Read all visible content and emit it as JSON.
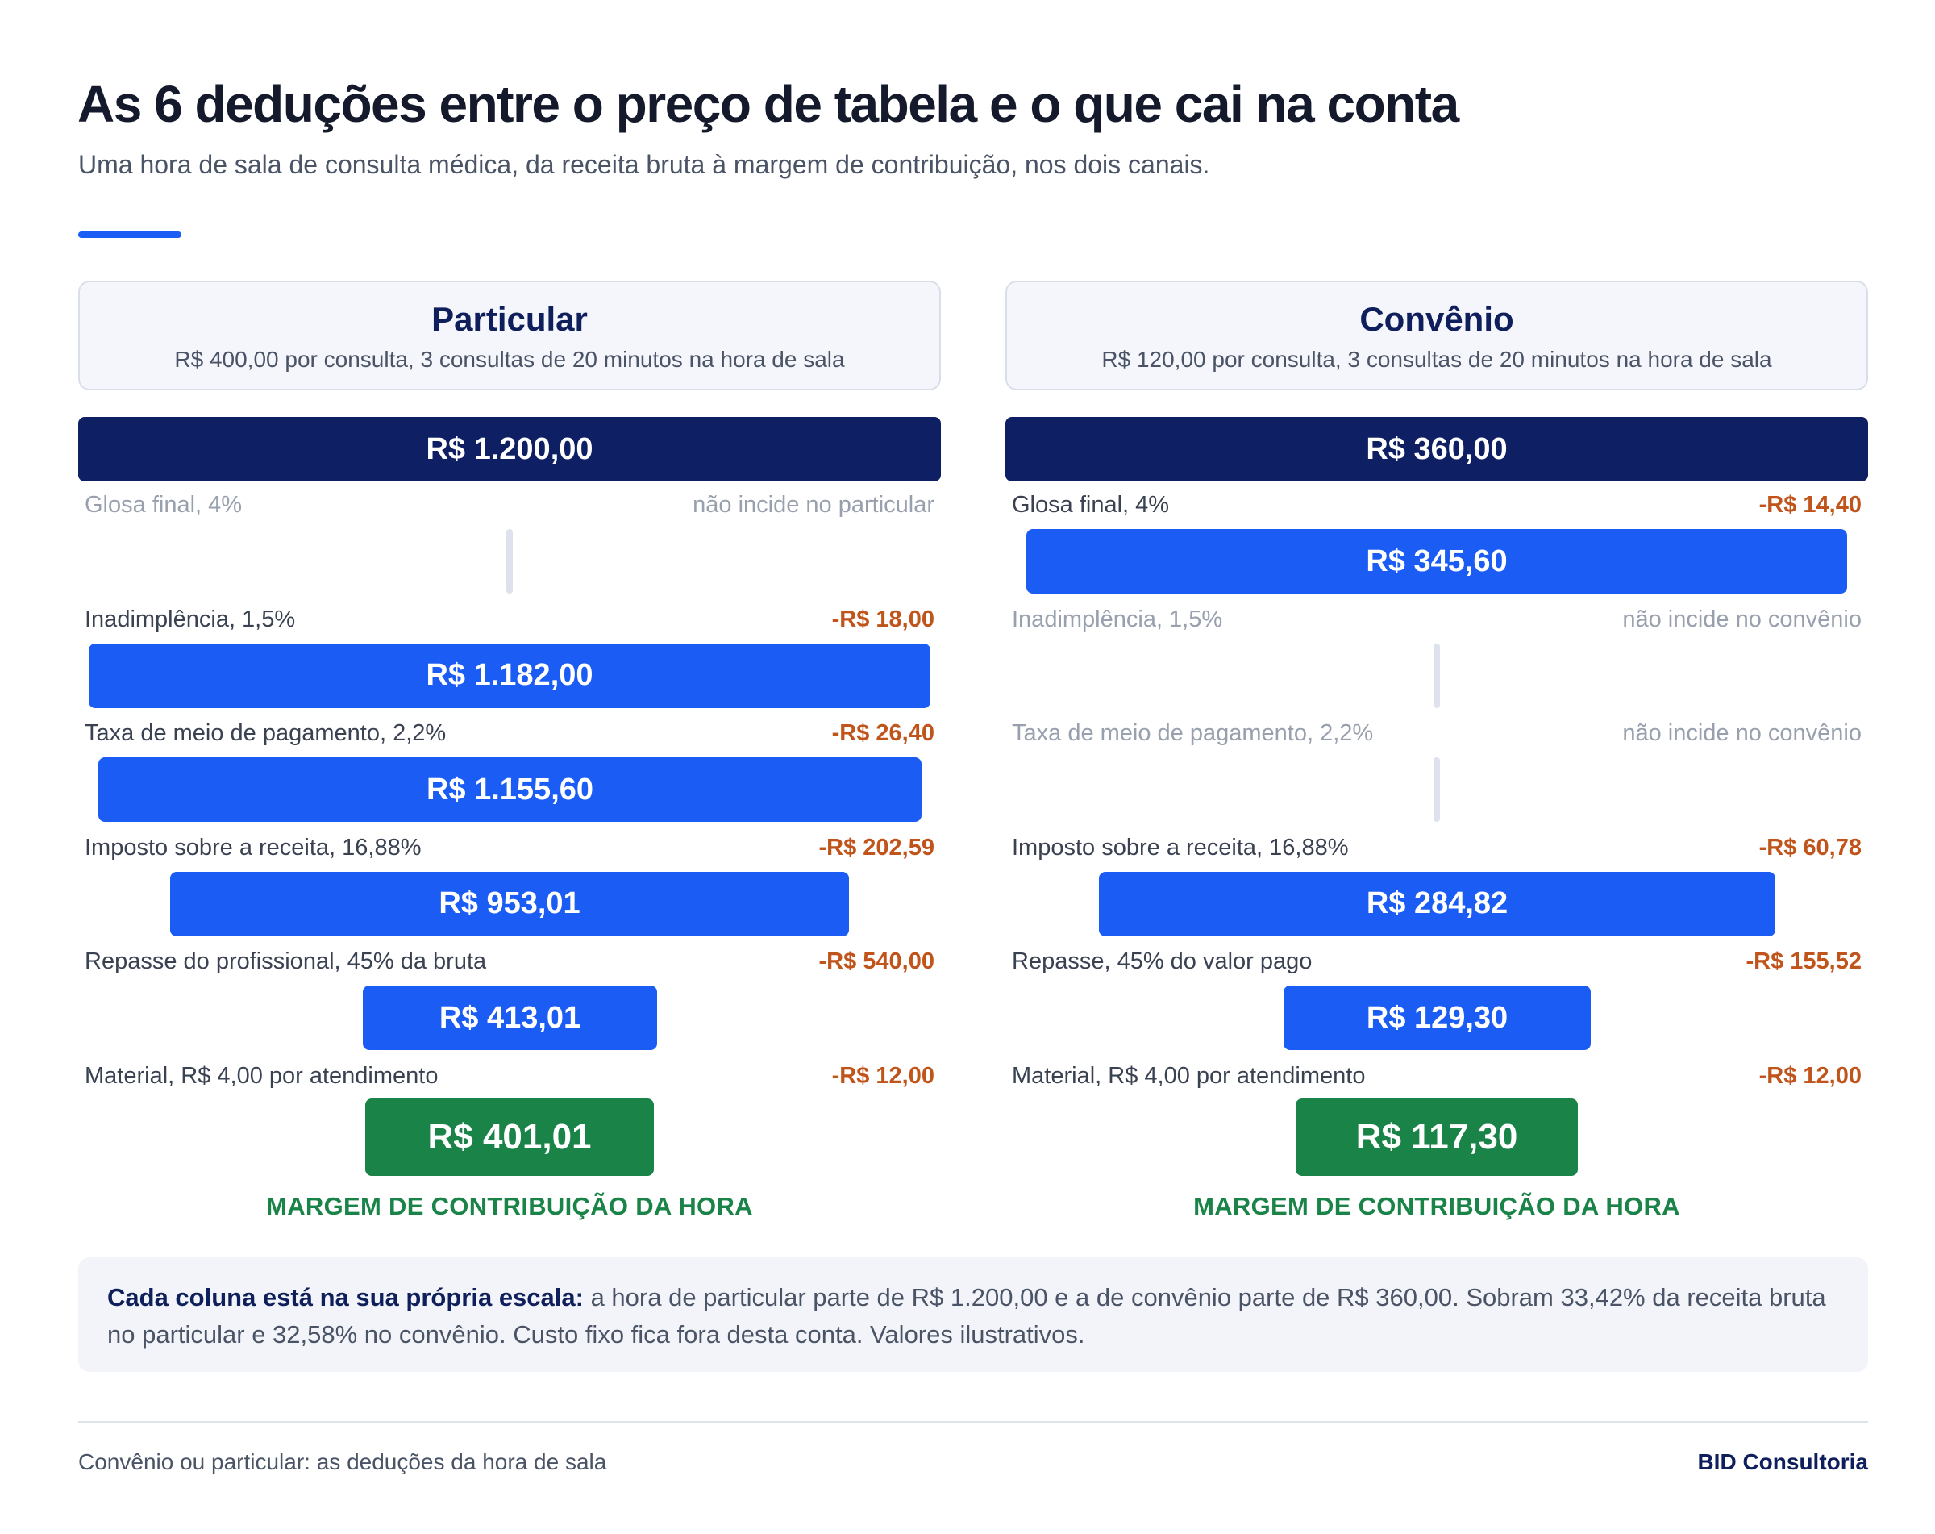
{
  "header": {
    "title": "As 6 deduções entre o preço de tabela e o que cai na conta",
    "subtitle": "Uma hora de sala de consulta médica, da receita bruta à margem de contribuição, nos dois canais."
  },
  "colors": {
    "accent": "#1b5cf5",
    "top_bar": "#0e1f63",
    "bar": "#1b5cf5",
    "final": "#1a8347",
    "deduction": "#c0541a",
    "muted": "#98a0ae"
  },
  "columns": [
    {
      "name": "Particular",
      "description": "R$ 400,00 por consulta, 3 consultas de 20 minutos na hora de sala",
      "gross": "R$ 1.200,00",
      "gross_value": 1200.0,
      "steps": [
        {
          "label": "Glosa final, 4%",
          "amount": "não incide no particular",
          "applies": false,
          "bar_label": "",
          "bar_value": 1200.0
        },
        {
          "label": "Inadimplência, 1,5%",
          "amount": "-R$ 18,00",
          "applies": true,
          "bar_label": "R$ 1.182,00",
          "bar_value": 1182.0
        },
        {
          "label": "Taxa de meio de pagamento, 2,2%",
          "amount": "-R$ 26,40",
          "applies": true,
          "bar_label": "R$ 1.155,60",
          "bar_value": 1155.6
        },
        {
          "label": "Imposto sobre a receita, 16,88%",
          "amount": "-R$ 202,59",
          "applies": true,
          "bar_label": "R$ 953,01",
          "bar_value": 953.01
        },
        {
          "label": "Repasse do profissional, 45% da bruta",
          "amount": "-R$ 540,00",
          "applies": true,
          "bar_label": "R$ 413,01",
          "bar_value": 413.01
        },
        {
          "label": "Material, R$ 4,00 por atendimento",
          "amount": "-R$ 12,00",
          "applies": true,
          "bar_label": "R$ 401,01",
          "bar_value": 401.01
        }
      ],
      "final_caption": "MARGEM DE CONTRIBUIÇÃO DA HORA"
    },
    {
      "name": "Convênio",
      "description": "R$ 120,00 por consulta, 3 consultas de 20 minutos na hora de sala",
      "gross": "R$ 360,00",
      "gross_value": 360.0,
      "steps": [
        {
          "label": "Glosa final, 4%",
          "amount": "-R$ 14,40",
          "applies": true,
          "bar_label": "R$ 345,60",
          "bar_value": 345.6
        },
        {
          "label": "Inadimplência, 1,5%",
          "amount": "não incide no convênio",
          "applies": false,
          "bar_label": "",
          "bar_value": 345.6
        },
        {
          "label": "Taxa de meio de pagamento, 2,2%",
          "amount": "não incide no convênio",
          "applies": false,
          "bar_label": "",
          "bar_value": 345.6
        },
        {
          "label": "Imposto sobre a receita, 16,88%",
          "amount": "-R$ 60,78",
          "applies": true,
          "bar_label": "R$ 284,82",
          "bar_value": 284.82
        },
        {
          "label": "Repasse, 45% do valor pago",
          "amount": "-R$ 155,52",
          "applies": true,
          "bar_label": "R$ 129,30",
          "bar_value": 129.3
        },
        {
          "label": "Material, R$ 4,00 por atendimento",
          "amount": "-R$ 12,00",
          "applies": true,
          "bar_label": "R$ 117,30",
          "bar_value": 117.3
        }
      ],
      "final_caption": "MARGEM DE CONTRIBUIÇÃO DA HORA"
    }
  ],
  "note": {
    "bold": "Cada coluna está na sua própria escala:",
    "text": " a hora de particular parte de R$ 1.200,00 e a de convênio parte de R$ 360,00. Sobram 33,42% da receita bruta no particular e 32,58% no convênio. Custo fixo fica fora desta conta. Valores ilustrativos."
  },
  "footer": {
    "left": "Convênio ou particular: as deduções da hora de sala",
    "right": "BID Consultoria"
  }
}
